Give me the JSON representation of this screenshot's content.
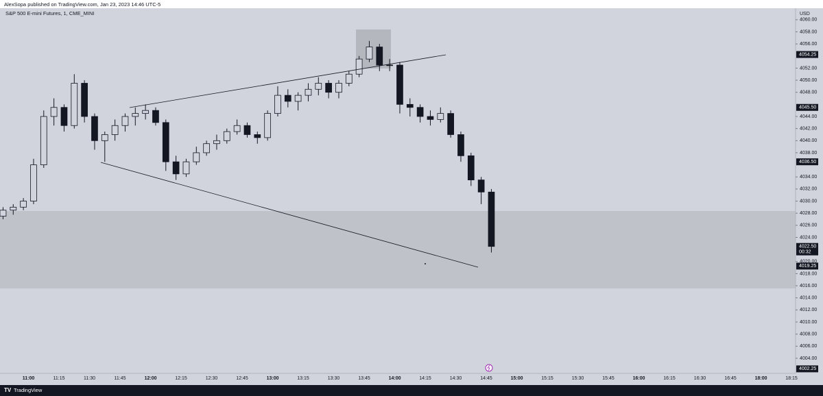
{
  "header": {
    "publisher": "AlexSopa published on TradingView.com, Jan 23, 2023 14:46 UTC-5",
    "symbol": "S&P 500 E-mini Futures, 1, CME_MINI",
    "currency": "USD",
    "brand": "TradingView"
  },
  "chart_data": {
    "type": "candlestick",
    "color": "#131722",
    "x": [
      "10:45",
      "10:50",
      "10:55",
      "11:00",
      "11:05",
      "11:10",
      "11:15",
      "11:20",
      "11:25",
      "11:30",
      "11:35",
      "11:40",
      "11:45",
      "11:50",
      "11:55",
      "12:00",
      "12:05",
      "12:10",
      "12:15",
      "12:20",
      "12:25",
      "12:30",
      "12:35",
      "12:40",
      "12:45",
      "12:50",
      "12:55",
      "13:00",
      "13:05",
      "13:10",
      "13:15",
      "13:20",
      "13:25",
      "13:30",
      "13:35",
      "13:40",
      "13:45",
      "13:50",
      "13:55",
      "14:00",
      "14:05",
      "14:10",
      "14:15",
      "14:20",
      "14:25",
      "14:30",
      "14:35",
      "14:40",
      "14:45"
    ],
    "open": [
      4027.5,
      4028.5,
      4029,
      4030,
      4036,
      4044,
      4045.5,
      4042.5,
      4049.5,
      4044,
      4040,
      4041,
      4042.5,
      4044,
      4044.5,
      4045,
      4043,
      4036.5,
      4034.5,
      4036.5,
      4038,
      4039.5,
      4040,
      4041.5,
      4042.5,
      4041,
      4040.5,
      4044.5,
      4047.5,
      4046.5,
      4047.5,
      4048.5,
      4049.5,
      4048,
      4049.5,
      4051,
      4053.5,
      4055.5,
      4052.5,
      4052.5,
      4046,
      4045.5,
      4044,
      4043.5,
      4044.5,
      4041,
      4037.5,
      4033.5,
      4031.5
    ],
    "high": [
      4029,
      4029.5,
      4030.5,
      4037,
      4045,
      4047,
      4046,
      4051,
      4050,
      4044.5,
      4041.5,
      4043.5,
      4044.5,
      4045.5,
      4046,
      4045.5,
      4043.5,
      4037.5,
      4037,
      4039,
      4040,
      4041,
      4042,
      4043.5,
      4043,
      4041.5,
      4045,
      4049,
      4048.5,
      4048,
      4049.5,
      4050.5,
      4050,
      4050,
      4051.5,
      4054,
      4056.5,
      4056,
      4053.5,
      4053,
      4047,
      4046,
      4045,
      4045.5,
      4045,
      4041.5,
      4038,
      4034,
      4032
    ],
    "low": [
      4027,
      4027.75,
      4028.5,
      4029.5,
      4035.5,
      4042.5,
      4041.5,
      4042,
      4043,
      4038.5,
      4036.5,
      4040,
      4041.5,
      4042.5,
      4043.5,
      4042.5,
      4035,
      4033.5,
      4034,
      4036,
      4037.5,
      4038.5,
      4039.5,
      4041,
      4040.5,
      4039.5,
      4040,
      4044,
      4045.5,
      4045,
      4046.5,
      4047.5,
      4047,
      4047,
      4049,
      4050.5,
      4053,
      4051.5,
      4051.5,
      4044.5,
      4044,
      4043,
      4042.5,
      4043,
      4040.5,
      4036.5,
      4032.5,
      4029.5,
      4021.5
    ],
    "close": [
      4028.5,
      4029,
      4030,
      4036,
      4044,
      4045.5,
      4042.5,
      4049.5,
      4044,
      4040,
      4041,
      4042.5,
      4044,
      4044.5,
      4045,
      4043,
      4036.5,
      4034.5,
      4036.5,
      4038,
      4039.5,
      4040,
      4041.5,
      4042.5,
      4041,
      4040.5,
      4044.5,
      4047.5,
      4046.5,
      4047.5,
      4048.5,
      4049.5,
      4048,
      4049.5,
      4051,
      4053.5,
      4055.5,
      4052.5,
      4052.5,
      4046,
      4045.5,
      4044,
      4043.5,
      4044.5,
      4041,
      4037.5,
      4033.5,
      4031.5,
      4022.5
    ],
    "xlim": [
      "10:46",
      "18:17"
    ],
    "xticks": [
      "11:00",
      "11:15",
      "11:30",
      "11:45",
      "12:00",
      "12:15",
      "12:30",
      "12:45",
      "13:00",
      "13:15",
      "13:30",
      "13:45",
      "14:00",
      "14:15",
      "14:30",
      "14:45",
      "15:00",
      "15:15",
      "15:30",
      "15:45",
      "16:00",
      "16:15",
      "16:30",
      "16:45",
      "18:00",
      "18:15"
    ],
    "ylim": [
      4001.5,
      4061
    ],
    "yticks": [
      {
        "value": 4004,
        "label": "4004.00"
      },
      {
        "value": 4006,
        "label": "4006.00"
      },
      {
        "value": 4008,
        "label": "4008.00"
      },
      {
        "value": 4010,
        "label": "4010.00"
      },
      {
        "value": 4012,
        "label": "4012.00"
      },
      {
        "value": 4014,
        "label": "4014.00"
      },
      {
        "value": 4016,
        "label": "4016.00"
      },
      {
        "value": 4018,
        "label": "4018.00"
      },
      {
        "value": 4020,
        "label": "4020.00"
      },
      {
        "value": 4024,
        "label": "4024.00"
      },
      {
        "value": 4026,
        "label": "4026.00"
      },
      {
        "value": 4028,
        "label": "4028.00"
      },
      {
        "value": 4030,
        "label": "4030.00"
      },
      {
        "value": 4032,
        "label": "4032.00"
      },
      {
        "value": 4034,
        "label": "4034.00"
      },
      {
        "value": 4038,
        "label": "4038.00"
      },
      {
        "value": 4040,
        "label": "4040.00"
      },
      {
        "value": 4042,
        "label": "4042.00"
      },
      {
        "value": 4044,
        "label": "4044.00"
      },
      {
        "value": 4048,
        "label": "4048.00"
      },
      {
        "value": 4050,
        "label": "4050.00"
      },
      {
        "value": 4052,
        "label": "4052.00"
      },
      {
        "value": 4056,
        "label": "4056.00"
      },
      {
        "value": 4058,
        "label": "4058.00"
      },
      {
        "value": 4060,
        "label": "4060.00"
      }
    ],
    "price_labels": [
      {
        "value": 4054.25,
        "label": "4054.25"
      },
      {
        "value": 4045.5,
        "label": "4045.50"
      },
      {
        "value": 4036.5,
        "label": "4036.50"
      },
      {
        "value": 4022.5,
        "label": "4022.50",
        "countdown": "00:32"
      },
      {
        "value": 4019.25,
        "label": "4019.25"
      },
      {
        "value": 4002.25,
        "label": "4002.25"
      }
    ]
  }
}
